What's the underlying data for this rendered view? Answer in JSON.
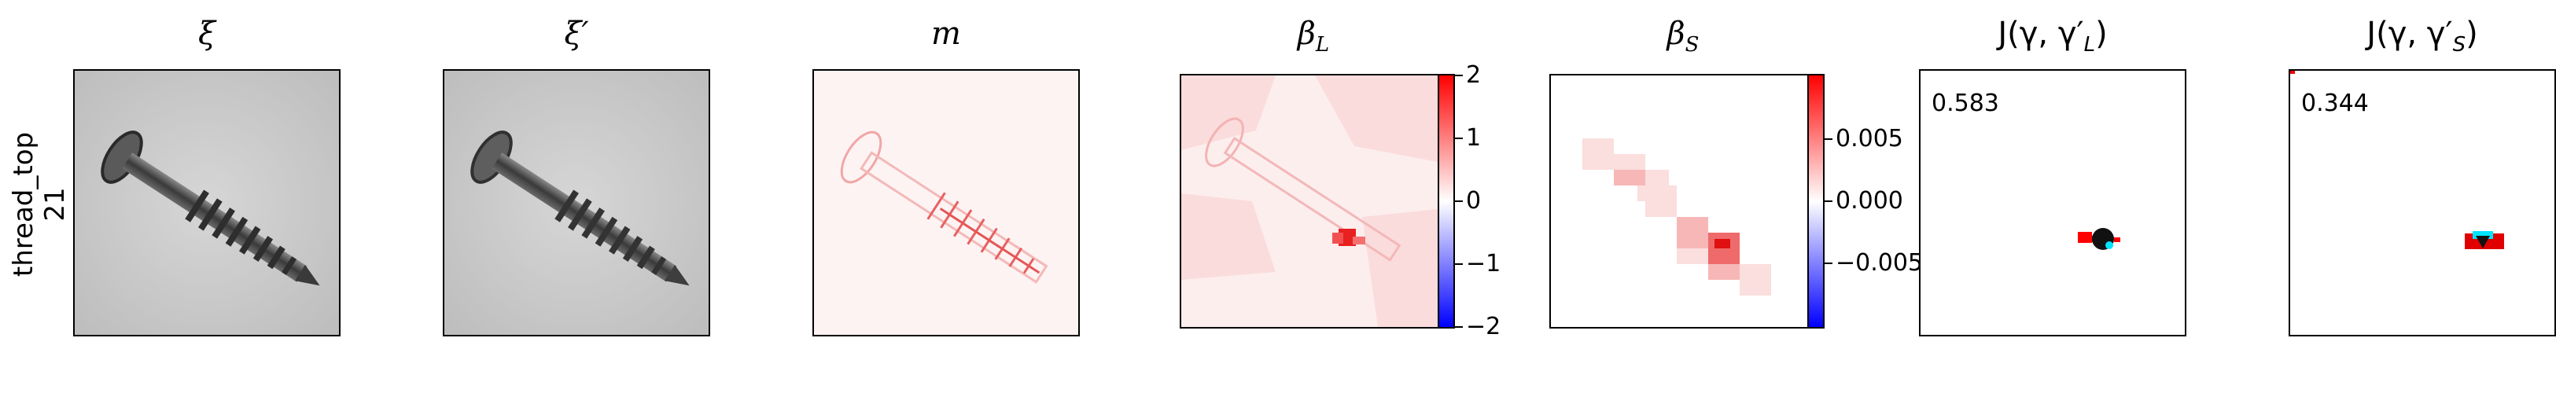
{
  "row_label": {
    "line1": "thread_top",
    "line2": "21"
  },
  "panels": {
    "xi": {
      "title": "ξ"
    },
    "xi_prime": {
      "title": "ξ′"
    },
    "m": {
      "title": "m"
    },
    "beta_l": {
      "title_main": "β",
      "title_sub": "L"
    },
    "beta_s": {
      "title_main": "β",
      "title_sub": "S"
    },
    "j_l": {
      "title": "J(γ, γ′",
      "title_sub": "L",
      "title_end": ")",
      "score": "0.583"
    },
    "j_s": {
      "title": "J(γ, γ′",
      "title_sub": "S",
      "title_end": ")",
      "score": "0.344"
    }
  },
  "colorbar_l": {
    "ticks": [
      "2",
      "1",
      "0",
      "−1",
      "−2"
    ]
  },
  "colorbar_s": {
    "ticks": [
      "0.005",
      "0.000",
      "−0.005"
    ]
  },
  "colors": {
    "positive": "#ff0000",
    "negative": "#0000ff",
    "neutral": "#ffffff",
    "cyan": "#00e5ff"
  }
}
